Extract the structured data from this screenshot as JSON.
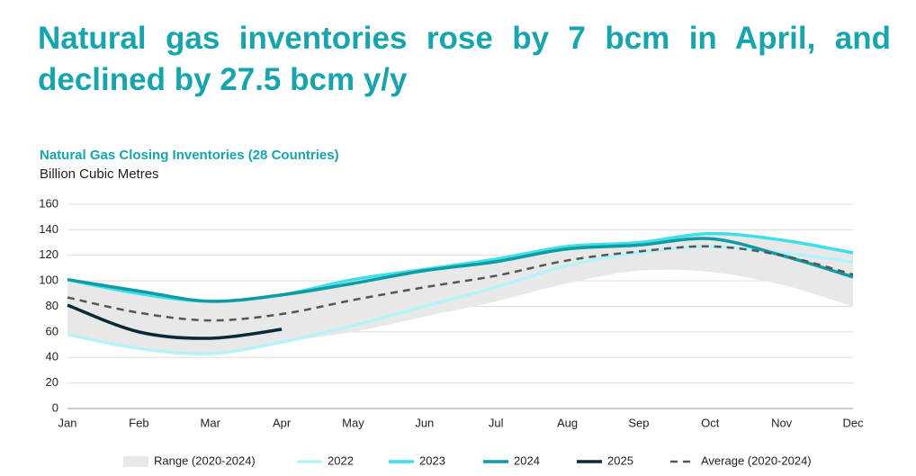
{
  "chart_data": {
    "type": "line",
    "title": "Natural gas inventories rose by 7 bcm in April, and declined by 27.5 bcm y/y",
    "subtitle": "Natural Gas Closing Inventories (28 Countries)",
    "y_label": "Billion Cubic Metres",
    "categories": [
      "Jan",
      "Feb",
      "Mar",
      "Apr",
      "May",
      "Jun",
      "Jul",
      "Aug",
      "Sep",
      "Oct",
      "Nov",
      "Dec"
    ],
    "ylim": [
      0,
      160
    ],
    "yticks": [
      0,
      20,
      40,
      60,
      80,
      100,
      120,
      140,
      160
    ],
    "grid": true,
    "legend": "bottom",
    "range": {
      "name": "Range (2020-2024)",
      "color": "#e8e8e8",
      "low": [
        58,
        47,
        43,
        52,
        60,
        72,
        84,
        98,
        108,
        107,
        97,
        80
      ],
      "high": [
        101,
        92,
        85,
        89,
        101,
        109,
        117,
        127,
        130,
        137,
        132,
        122
      ]
    },
    "series": [
      {
        "name": "2022",
        "color": "#b5f3fa",
        "values": [
          58,
          47,
          43,
          52,
          65,
          80,
          95,
          112,
          122,
          127,
          122,
          115
        ]
      },
      {
        "name": "2023",
        "color": "#3fdfe8",
        "values": [
          101,
          90,
          84,
          89,
          101,
          109,
          117,
          127,
          130,
          137,
          132,
          122
        ]
      },
      {
        "name": "2024",
        "color": "#0f9ba4",
        "values": [
          101,
          92,
          84,
          89,
          98,
          108,
          115,
          125,
          128,
          133,
          120,
          103
        ]
      },
      {
        "name": "2025",
        "color": "#0b2836",
        "values": [
          81,
          60,
          55,
          62,
          null,
          null,
          null,
          null,
          null,
          null,
          null,
          null
        ]
      },
      {
        "name": "Average (2020-2024)",
        "color": "#555555",
        "dashed": true,
        "values": [
          87,
          75,
          69,
          74,
          85,
          95,
          104,
          116,
          123,
          127,
          120,
          105
        ]
      }
    ]
  }
}
